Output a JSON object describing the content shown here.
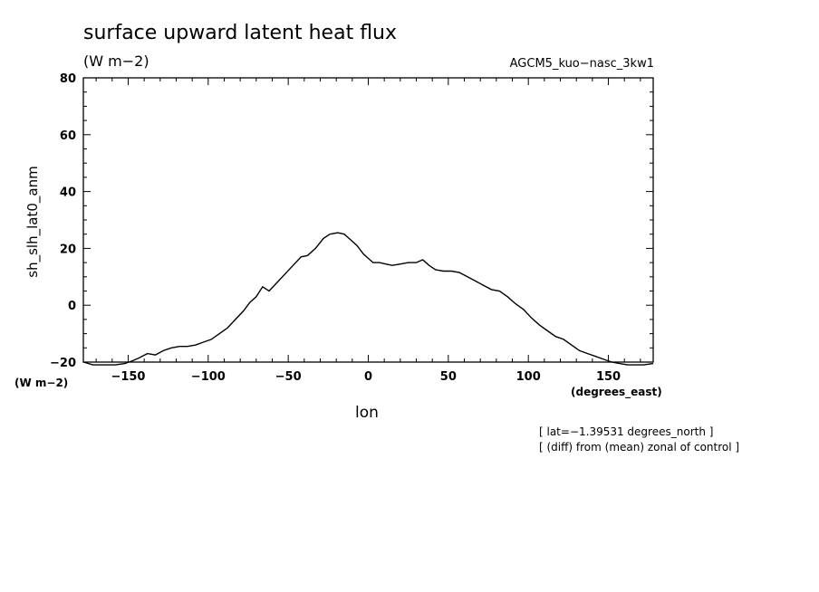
{
  "chart_data": {
    "type": "line",
    "title": "surface upward latent heat flux",
    "units": "(W m−2)",
    "model_label": "AGCM5_kuo−nasc_3kw1",
    "ylabel": "sh_slh_lat0_anm",
    "yunits": "(W m−2)",
    "xlabel": "lon",
    "xunits": "(degrees_east)",
    "notes": [
      "[ lat=−1.39531 degrees_north ]",
      "[ (diff) from (mean) zonal of control ]"
    ],
    "xlim": [
      -178,
      178
    ],
    "ylim": [
      -20,
      80
    ],
    "xticks": [
      -150,
      -100,
      -50,
      0,
      50,
      100,
      150
    ],
    "xtick_labels": [
      "−150",
      "−100",
      "−50",
      "0",
      "50",
      "100",
      "150"
    ],
    "yticks": [
      -20,
      0,
      20,
      40,
      60,
      80
    ],
    "ytick_labels": [
      "−20",
      "0",
      "20",
      "40",
      "60",
      "80"
    ],
    "grid": false,
    "series": [
      {
        "x": [
          -180,
          -172,
          -165,
          -158,
          -152,
          -147,
          -143,
          -138,
          -133,
          -128,
          -123,
          -118,
          -113,
          -108,
          -103,
          -98,
          -93,
          -88,
          -83,
          -78,
          -74,
          -70,
          -66,
          -62,
          -57,
          -52,
          -47,
          -42,
          -38,
          -33,
          -28,
          -24,
          -19,
          -15,
          -11,
          -7,
          -3,
          0,
          3,
          7,
          11,
          15,
          20,
          25,
          30,
          34,
          38,
          42,
          47,
          52,
          57,
          62,
          67,
          72,
          77,
          82,
          87,
          92,
          97,
          102,
          107,
          112,
          117,
          122,
          127,
          132,
          137,
          142,
          147,
          152,
          157,
          162,
          167,
          172,
          178
        ],
        "y": [
          -20,
          -21,
          -21,
          -21,
          -20.5,
          -19.5,
          -18.5,
          -17,
          -17.5,
          -16,
          -15,
          -14.5,
          -14.5,
          -14,
          -13,
          -12,
          -10,
          -8,
          -5,
          -2,
          1,
          3,
          6.5,
          5,
          8,
          11,
          14,
          17,
          17.5,
          20,
          23.5,
          25,
          25.5,
          25,
          23,
          21,
          18,
          16.5,
          15,
          15,
          14.5,
          14,
          14.5,
          15,
          15,
          16,
          14,
          12.5,
          12,
          12,
          11.5,
          10,
          8.5,
          7,
          5.5,
          5,
          3,
          0.5,
          -1.5,
          -4.5,
          -7,
          -9,
          -11,
          -12,
          -14,
          -16,
          -17,
          -18,
          -19,
          -20,
          -20.5,
          -21,
          -21,
          -21,
          -20.5
        ]
      }
    ]
  }
}
